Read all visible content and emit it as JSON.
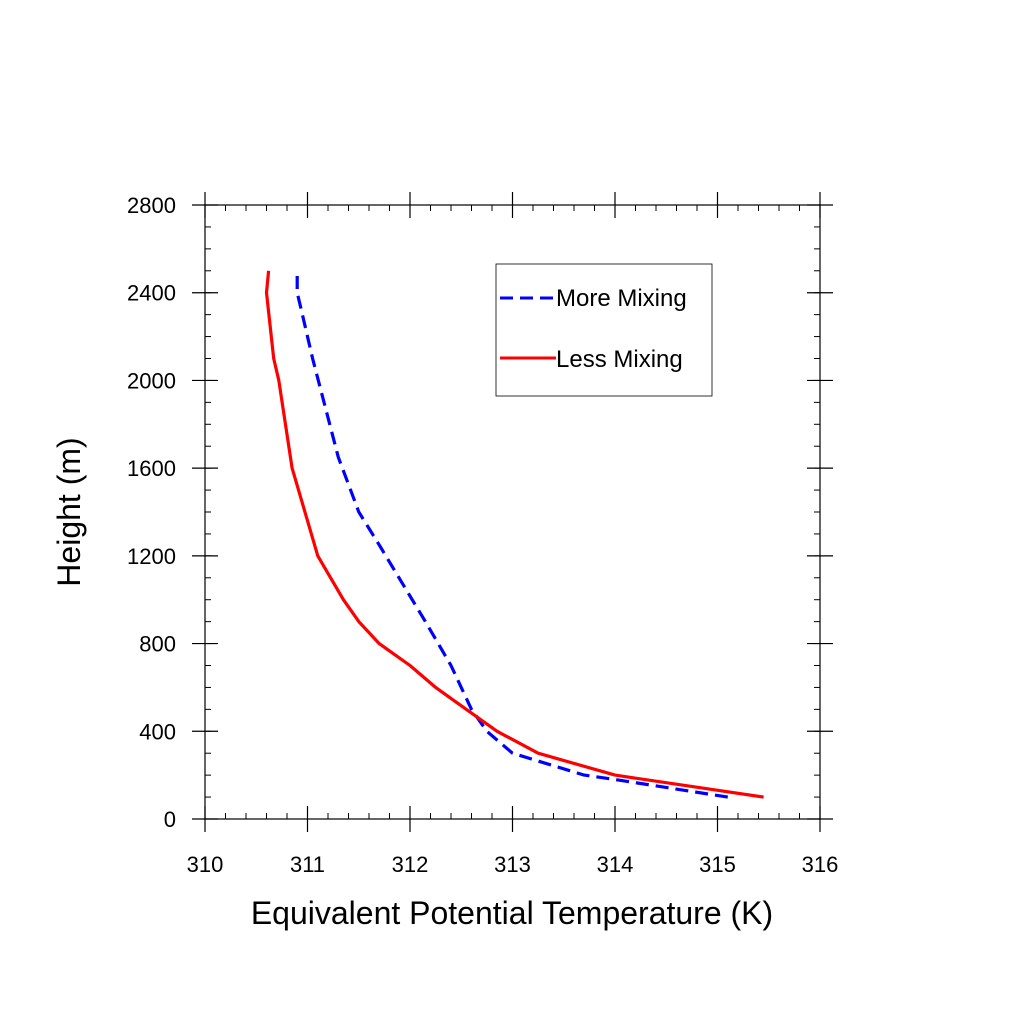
{
  "chart_data": {
    "type": "line",
    "title": "",
    "xlabel": "Equivalent Potential Temperature (K)",
    "ylabel": "Height (m)",
    "xlim": [
      310,
      316
    ],
    "ylim": [
      0,
      2800
    ],
    "x_ticks": [
      310,
      311,
      312,
      313,
      314,
      315,
      316
    ],
    "y_ticks": [
      0,
      400,
      800,
      1200,
      1600,
      2000,
      2400,
      2800
    ],
    "grid": false,
    "legend_position": "top-right",
    "series": [
      {
        "name": "More Mixing",
        "color": "#0000ff",
        "line_style": "dashed",
        "points": [
          [
            315.1,
            100
          ],
          [
            314.0,
            180
          ],
          [
            313.7,
            200
          ],
          [
            313.0,
            300
          ],
          [
            312.75,
            400
          ],
          [
            312.6,
            500
          ],
          [
            312.4,
            700
          ],
          [
            312.15,
            900
          ],
          [
            311.7,
            1250
          ],
          [
            311.5,
            1400
          ],
          [
            311.3,
            1650
          ],
          [
            311.05,
            2100
          ],
          [
            310.95,
            2300
          ],
          [
            310.9,
            2400
          ],
          [
            310.9,
            2480
          ]
        ]
      },
      {
        "name": "Less Mixing",
        "color": "#ff0000",
        "line_style": "solid",
        "points": [
          [
            315.45,
            100
          ],
          [
            314.0,
            200
          ],
          [
            313.25,
            300
          ],
          [
            312.85,
            400
          ],
          [
            312.55,
            500
          ],
          [
            312.25,
            600
          ],
          [
            312.0,
            700
          ],
          [
            311.7,
            800
          ],
          [
            311.5,
            900
          ],
          [
            311.35,
            1000
          ],
          [
            311.1,
            1200
          ],
          [
            310.85,
            1600
          ],
          [
            310.72,
            2000
          ],
          [
            310.67,
            2100
          ],
          [
            310.6,
            2400
          ],
          [
            310.62,
            2500
          ]
        ]
      }
    ]
  }
}
